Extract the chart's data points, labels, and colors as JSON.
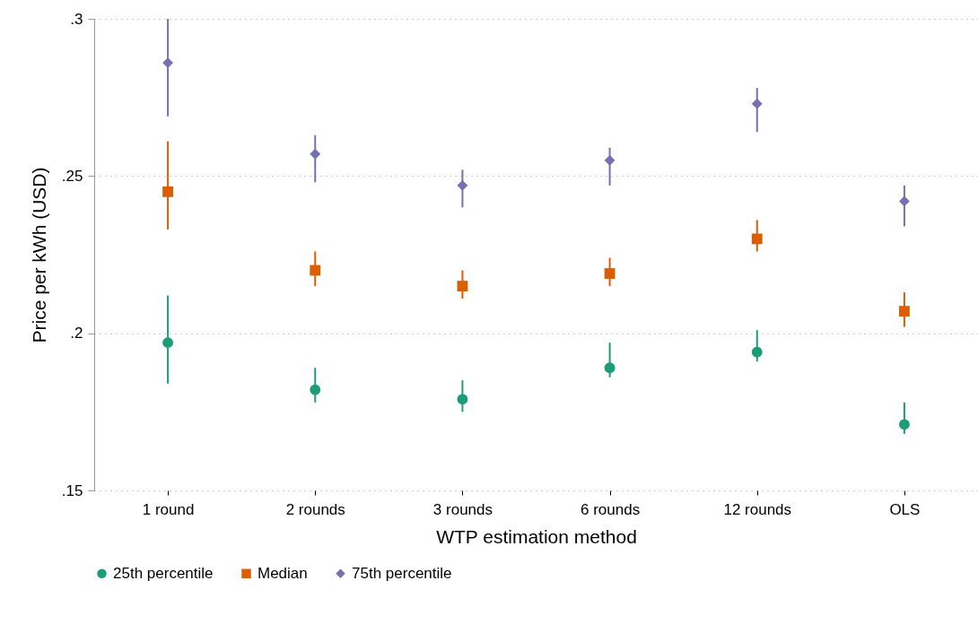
{
  "chart_data": {
    "type": "scatter",
    "xlabel": "WTP estimation method",
    "ylabel": "Price per kWh (USD)",
    "categories": [
      "1 round",
      "2 rounds",
      "3 rounds",
      "6 rounds",
      "12 rounds",
      "OLS"
    ],
    "series": [
      {
        "name": "25th percentile",
        "color": "#1b9e77",
        "marker": "circle",
        "values": [
          0.197,
          0.182,
          0.179,
          0.189,
          0.194,
          0.171
        ],
        "errors": [
          [
            0.184,
            0.212
          ],
          [
            0.178,
            0.189
          ],
          [
            0.175,
            0.185
          ],
          [
            0.186,
            0.197
          ],
          [
            0.191,
            0.201
          ],
          [
            0.168,
            0.178
          ]
        ]
      },
      {
        "name": "Median",
        "color": "#d95f02",
        "marker": "square",
        "values": [
          0.245,
          0.22,
          0.215,
          0.219,
          0.23,
          0.207
        ],
        "errors": [
          [
            0.233,
            0.261
          ],
          [
            0.215,
            0.226
          ],
          [
            0.211,
            0.22
          ],
          [
            0.215,
            0.224
          ],
          [
            0.226,
            0.236
          ],
          [
            0.202,
            0.213
          ]
        ]
      },
      {
        "name": "75th percentile",
        "color": "#7570b3",
        "marker": "diamond",
        "values": [
          0.286,
          0.257,
          0.247,
          0.255,
          0.273,
          0.242
        ],
        "errors": [
          [
            0.269,
            0.3
          ],
          [
            0.248,
            0.263
          ],
          [
            0.24,
            0.252
          ],
          [
            0.247,
            0.259
          ],
          [
            0.264,
            0.278
          ],
          [
            0.234,
            0.247
          ]
        ]
      }
    ],
    "ylim": [
      0.15,
      0.3
    ],
    "yticks": [
      {
        "value": 0.15,
        "label": ".15"
      },
      {
        "value": 0.2,
        "label": ".2"
      },
      {
        "value": 0.25,
        "label": ".25"
      },
      {
        "value": 0.3,
        "label": ".3"
      }
    ],
    "grid": "y",
    "legend": "bottom"
  }
}
